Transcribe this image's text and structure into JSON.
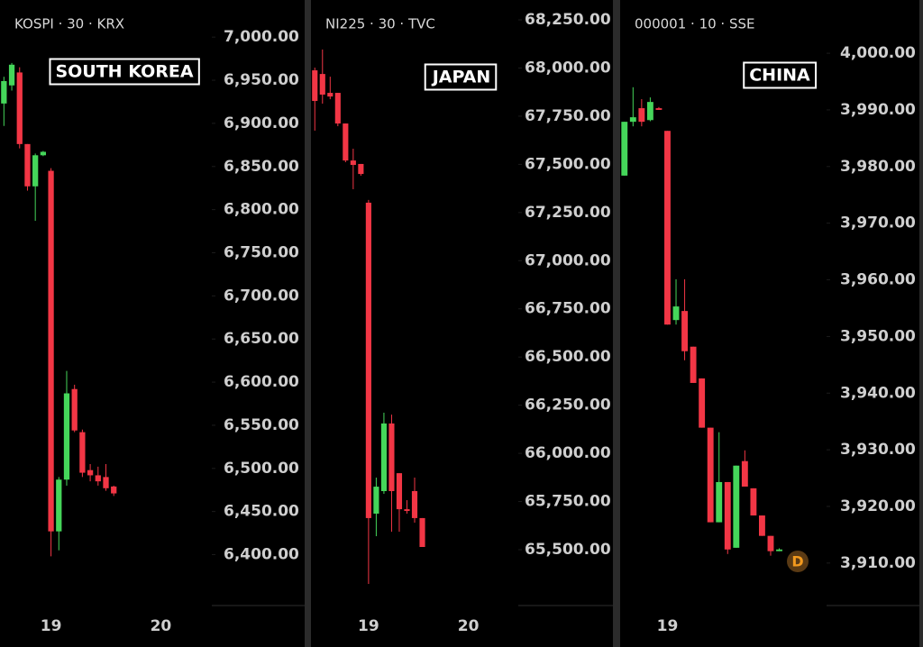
{
  "chart_data": [
    {
      "type": "candlestick",
      "header": "KOSPI · 30 · KRX",
      "label": "SOUTH KOREA",
      "up_color": "#45d65a",
      "down_color": "#f23645",
      "categories": [
        null,
        null,
        null,
        null,
        null,
        null,
        "19",
        null,
        null,
        null,
        null,
        null,
        null,
        null,
        null,
        null,
        null,
        null,
        null,
        null,
        "20",
        null,
        null,
        null,
        null,
        null,
        null
      ],
      "open": [
        6923,
        6944,
        6959,
        6876,
        6827,
        6863,
        6845,
        6427,
        6487,
        6592,
        6542,
        6498,
        6492,
        6490,
        6479,
        null,
        null,
        null,
        null,
        null,
        null,
        null,
        null,
        null,
        null,
        null,
        null
      ],
      "high": [
        6954,
        6970,
        6965,
        6876,
        6865,
        6868,
        6848,
        6490,
        6613,
        6597,
        6545,
        6505,
        6502,
        6505,
        6480,
        null,
        null,
        null,
        null,
        null,
        null,
        null,
        null,
        null,
        null,
        null,
        null
      ],
      "low": [
        6897,
        6938,
        6871,
        6822,
        6787,
        6862,
        6398,
        6405,
        6480,
        6542,
        6490,
        6485,
        6480,
        6474,
        6468,
        null,
        null,
        null,
        null,
        null,
        null,
        null,
        null,
        null,
        null,
        null,
        null
      ],
      "close": [
        6949,
        6968,
        6876,
        6827,
        6863,
        6867,
        6427,
        6487,
        6587,
        6544,
        6495,
        6492,
        6485,
        6477,
        6471,
        null,
        null,
        null,
        null,
        null,
        null,
        null,
        null,
        null,
        null,
        null,
        null
      ],
      "ylim": [
        6341,
        7043
      ],
      "yticks": [
        {
          "value": 6400,
          "label": "6,400.00"
        },
        {
          "value": 6450,
          "label": "6,450.00"
        },
        {
          "value": 6500,
          "label": "6,500.00"
        },
        {
          "value": 6550,
          "label": "6,550.00"
        },
        {
          "value": 6600,
          "label": "6,600.00"
        },
        {
          "value": 6650,
          "label": "6,650.00"
        },
        {
          "value": 6700,
          "label": "6,700.00"
        },
        {
          "value": 6750,
          "label": "6,750.00"
        },
        {
          "value": 6800,
          "label": "6,800.00"
        },
        {
          "value": 6850,
          "label": "6,850.00"
        },
        {
          "value": 6900,
          "label": "6,900.00"
        },
        {
          "value": 6950,
          "label": "6,950.00"
        },
        {
          "value": 7000,
          "label": "7,000.00"
        }
      ]
    },
    {
      "type": "candlestick",
      "header": "NI225 · 30 · TVC",
      "label": "JAPAN",
      "up_color": "#45d65a",
      "down_color": "#f23645",
      "categories": [
        null,
        null,
        null,
        null,
        null,
        null,
        null,
        "19",
        null,
        null,
        null,
        null,
        null,
        null,
        null,
        null,
        null,
        null,
        null,
        null,
        "20",
        null,
        null,
        null,
        null,
        null,
        null
      ],
      "open": [
        67988,
        67969,
        67871,
        67871,
        67712,
        67520,
        67502,
        67301,
        65687,
        65804,
        66155,
        65897,
        65710,
        65804,
        65664,
        null,
        null,
        null,
        null,
        null,
        null,
        null,
        null,
        null,
        null,
        null,
        null
      ],
      "high": [
        68002,
        68096,
        67955,
        67871,
        67712,
        67581,
        67502,
        67315,
        65874,
        66211,
        66201,
        65897,
        65757,
        65874,
        65664,
        null,
        null,
        null,
        null,
        null,
        null,
        null,
        null,
        null,
        null,
        null,
        null
      ],
      "low": [
        67675,
        67815,
        67838,
        67698,
        67511,
        67371,
        67441,
        65322,
        65570,
        65790,
        65593,
        65593,
        65687,
        65640,
        65514,
        null,
        null,
        null,
        null,
        null,
        null,
        null,
        null,
        null,
        null,
        null,
        null
      ],
      "close": [
        67829,
        67862,
        67852,
        67712,
        67520,
        67497,
        67450,
        65664,
        65827,
        66155,
        65804,
        65710,
        65701,
        65664,
        65514,
        null,
        null,
        null,
        null,
        null,
        null,
        null,
        null,
        null,
        null,
        null,
        null
      ],
      "ylim": [
        65210,
        68353
      ],
      "yticks": [
        {
          "value": 65500,
          "label": "65,500.00"
        },
        {
          "value": 65750,
          "label": "65,750.00"
        },
        {
          "value": 66000,
          "label": "66,000.00"
        },
        {
          "value": 66250,
          "label": "66,250.00"
        },
        {
          "value": 66500,
          "label": "66,500.00"
        },
        {
          "value": 66750,
          "label": "66,750.00"
        },
        {
          "value": 67000,
          "label": "67,000.00"
        },
        {
          "value": 67250,
          "label": "67,250.00"
        },
        {
          "value": 67500,
          "label": "67,500.00"
        },
        {
          "value": 67750,
          "label": "67,750.00"
        },
        {
          "value": 68000,
          "label": "68,000.00"
        },
        {
          "value": 68250,
          "label": "68,250.00"
        }
      ]
    },
    {
      "type": "candlestick",
      "header": "000001 · 10 · SSE",
      "label": "CHINA",
      "badge": "D",
      "up_color": "#45d65a",
      "down_color": "#f23645",
      "categories": [
        null,
        null,
        null,
        null,
        null,
        "19",
        null,
        null,
        null,
        null,
        null,
        null,
        null,
        null,
        null,
        null,
        null,
        null,
        null,
        null,
        null,
        null,
        null,
        null
      ],
      "open": [
        3978.4,
        3987.9,
        3990.3,
        3988.2,
        3990.3,
        3986.3,
        3952.9,
        3954.5,
        3948.2,
        3942.6,
        3933.9,
        3917.2,
        3924.3,
        3912.7,
        3928.0,
        3923.2,
        3918.4,
        3914.8,
        3912.1,
        null,
        null,
        null,
        null,
        null
      ],
      "high": [
        3987.9,
        3994.0,
        3991.9,
        3992.2,
        3990.5,
        3986.3,
        3960.1,
        3960.1,
        3948.2,
        3942.6,
        3933.9,
        3933.1,
        3924.3,
        3927.2,
        3929.9,
        3923.2,
        3918.4,
        3914.8,
        3912.6,
        null,
        null,
        null,
        null,
        null
      ],
      "low": [
        3978.4,
        3987.1,
        3987.1,
        3988.0,
        3990.0,
        3952.1,
        3952.1,
        3945.8,
        3941.8,
        3933.9,
        3917.2,
        3917.2,
        3911.6,
        3912.7,
        3923.5,
        3918.4,
        3914.8,
        3911.3,
        3912.1,
        null,
        null,
        null,
        null,
        null
      ],
      "close": [
        3987.9,
        3988.7,
        3987.9,
        3991.4,
        3990.0,
        3952.1,
        3955.3,
        3947.4,
        3941.8,
        3933.9,
        3917.2,
        3924.3,
        3912.4,
        3927.2,
        3923.5,
        3918.4,
        3914.8,
        3912.1,
        3912.4,
        null,
        null,
        null,
        null,
        null
      ],
      "ylim": [
        3902.5,
        4009.4
      ],
      "yticks": [
        {
          "value": 3910,
          "label": "3,910.00"
        },
        {
          "value": 3920,
          "label": "3,920.00"
        },
        {
          "value": 3930,
          "label": "3,930.00"
        },
        {
          "value": 3940,
          "label": "3,940.00"
        },
        {
          "value": 3950,
          "label": "3,950.00"
        },
        {
          "value": 3960,
          "label": "3,960.00"
        },
        {
          "value": 3970,
          "label": "3,970.00"
        },
        {
          "value": 3980,
          "label": "3,980.00"
        },
        {
          "value": 3990,
          "label": "3,990.00"
        },
        {
          "value": 4000,
          "label": "4,000.00"
        }
      ]
    }
  ]
}
